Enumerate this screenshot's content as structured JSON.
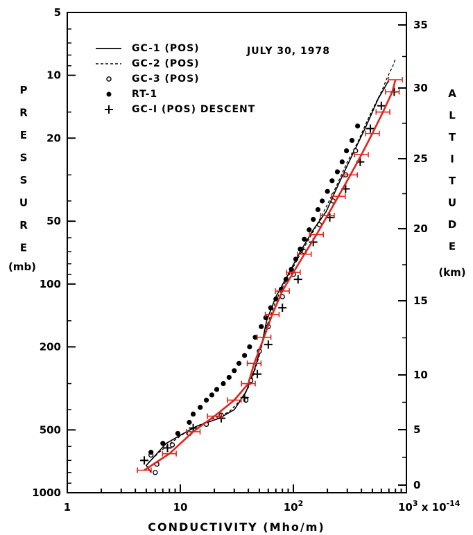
{
  "chart_data": {
    "type": "line",
    "annotation": "JULY 30, 1978",
    "xlabel": "CONDUCTIVITY (Mho/m)",
    "xscale": "log",
    "xlim": [
      1,
      1000
    ],
    "x_tick_labels": [
      "1",
      "10",
      "10^2",
      "10^3 x 10^-14"
    ],
    "ylabel_left_letters": [
      "P",
      "R",
      "E",
      "S",
      "S",
      "U",
      "R",
      "E"
    ],
    "ylabel_left_unit": "(mb)",
    "yscale_left": "log (inverted)",
    "ylim_left": [
      1000,
      5
    ],
    "y_left_tick_labels": [
      "5",
      "10",
      "20",
      "50",
      "100",
      "200",
      "500",
      "1000"
    ],
    "ylabel_right_letters": [
      "A",
      "L",
      "T",
      "I",
      "T",
      "U",
      "D",
      "E"
    ],
    "ylabel_right_unit": "(km)",
    "y_right_tick_labels": [
      "0",
      "5",
      "10",
      "15",
      "20",
      "25",
      "30",
      "35"
    ],
    "legend": [
      {
        "label": "GC-1 (POS)",
        "marker": "solid-line"
      },
      {
        "label": "GC-2 (POS)",
        "marker": "dashed-line"
      },
      {
        "label": "GC-3 (POS)",
        "marker": "open-circle"
      },
      {
        "label": "RT-1",
        "marker": "filled-circle"
      },
      {
        "label": "GC-I (POS) DESCENT",
        "marker": "plus"
      }
    ],
    "series": [
      {
        "name": "GC-1 (POS)",
        "style": "solid",
        "color": "#000000",
        "points": [
          [
            5.5,
            800
          ],
          [
            5.0,
            740
          ],
          [
            6.2,
            650
          ],
          [
            7.5,
            580
          ],
          [
            10,
            530
          ],
          [
            14,
            480
          ],
          [
            22,
            440
          ],
          [
            30,
            400
          ],
          [
            38,
            330
          ],
          [
            45,
            260
          ],
          [
            52,
            200
          ],
          [
            58,
            150
          ],
          [
            70,
            115
          ],
          [
            90,
            90
          ],
          [
            115,
            70
          ],
          [
            150,
            55
          ],
          [
            195,
            45
          ],
          [
            240,
            35
          ],
          [
            300,
            27
          ],
          [
            360,
            22
          ],
          [
            430,
            18
          ],
          [
            500,
            15
          ],
          [
            560,
            13
          ],
          [
            640,
            11.5
          ],
          [
            700,
            10.5
          ]
        ]
      },
      {
        "name": "GC-2 (POS)",
        "style": "dashed",
        "color": "#000000",
        "points": [
          [
            5.2,
            720
          ],
          [
            6.5,
            640
          ],
          [
            8.5,
            570
          ],
          [
            12,
            500
          ],
          [
            18,
            450
          ],
          [
            27,
            410
          ],
          [
            34,
            360
          ],
          [
            42,
            300
          ],
          [
            50,
            220
          ],
          [
            58,
            160
          ],
          [
            70,
            120
          ],
          [
            90,
            92
          ],
          [
            115,
            72
          ],
          [
            150,
            56
          ],
          [
            190,
            44
          ],
          [
            240,
            34
          ],
          [
            300,
            26
          ],
          [
            370,
            21
          ],
          [
            450,
            16.5
          ],
          [
            520,
            14
          ],
          [
            600,
            12
          ],
          [
            680,
            10.2
          ],
          [
            760,
            9.0
          ],
          [
            800,
            8.3
          ]
        ]
      },
      {
        "name": "GC-3 (POS)",
        "style": "open-circle",
        "color": "#000000",
        "points": [
          [
            6,
            800
          ],
          [
            6.2,
            730
          ],
          [
            5.5,
            660
          ],
          [
            8.5,
            590
          ],
          [
            12,
            520
          ],
          [
            17,
            470
          ],
          [
            23,
            425
          ],
          [
            38,
            360
          ],
          [
            42,
            290
          ],
          [
            50,
            210
          ],
          [
            60,
            160
          ],
          [
            80,
            115
          ],
          [
            100,
            90
          ],
          [
            125,
            70
          ],
          [
            170,
            52
          ],
          [
            225,
            40
          ],
          [
            290,
            30
          ],
          [
            355,
            23
          ]
        ]
      },
      {
        "name": "RT-1",
        "style": "filled-circle",
        "color": "#000000",
        "points": [
          [
            5.5,
            640
          ],
          [
            7,
            580
          ],
          [
            9.5,
            520
          ],
          [
            12,
            460
          ],
          [
            13,
            420
          ],
          [
            15,
            390
          ],
          [
            17,
            360
          ],
          [
            19,
            340
          ],
          [
            21,
            320
          ],
          [
            24,
            300
          ],
          [
            27,
            280
          ],
          [
            30,
            260
          ],
          [
            33,
            240
          ],
          [
            37,
            220
          ],
          [
            41,
            200
          ],
          [
            46,
            180
          ],
          [
            52,
            160
          ],
          [
            57,
            145
          ],
          [
            63,
            130
          ],
          [
            70,
            118
          ],
          [
            78,
            106
          ],
          [
            86,
            95
          ],
          [
            96,
            85
          ],
          [
            105,
            76
          ],
          [
            115,
            68
          ],
          [
            125,
            61
          ],
          [
            138,
            55
          ],
          [
            150,
            49
          ],
          [
            165,
            44
          ],
          [
            180,
            40
          ],
          [
            200,
            36
          ],
          [
            220,
            32
          ],
          [
            245,
            29
          ],
          [
            270,
            26
          ],
          [
            295,
            23
          ],
          [
            330,
            20.5
          ],
          [
            370,
            17.5
          ]
        ]
      },
      {
        "name": "GC-I (POS) DESCENT",
        "style": "plus",
        "color": "#000000",
        "points": [
          [
            4.8,
            700
          ],
          [
            7.7,
            610
          ],
          [
            13,
            490
          ],
          [
            23,
            440
          ],
          [
            37,
            350
          ],
          [
            48,
            270
          ],
          [
            60,
            195
          ],
          [
            80,
            130
          ],
          [
            110,
            95
          ],
          [
            150,
            63
          ],
          [
            210,
            48
          ],
          [
            290,
            35
          ],
          [
            390,
            26
          ],
          [
            480,
            18
          ],
          [
            600,
            14
          ],
          [
            780,
            12
          ]
        ]
      },
      {
        "name": "",
        "style": "solid-errorbars",
        "color": "#e0241b",
        "points": [
          [
            4.8,
            780
          ],
          [
            8,
            650
          ],
          [
            13,
            510
          ],
          [
            20,
            430
          ],
          [
            30,
            360
          ],
          [
            40,
            300
          ],
          [
            45,
            240
          ],
          [
            55,
            180
          ],
          [
            65,
            140
          ],
          [
            80,
            108
          ],
          [
            100,
            88
          ],
          [
            125,
            72
          ],
          [
            160,
            58
          ],
          [
            200,
            47
          ],
          [
            250,
            38
          ],
          [
            320,
            30
          ],
          [
            400,
            24
          ],
          [
            500,
            19
          ],
          [
            620,
            15
          ],
          [
            750,
            12
          ],
          [
            800,
            10.5
          ]
        ],
        "xerr_factor": 1.15
      }
    ]
  }
}
